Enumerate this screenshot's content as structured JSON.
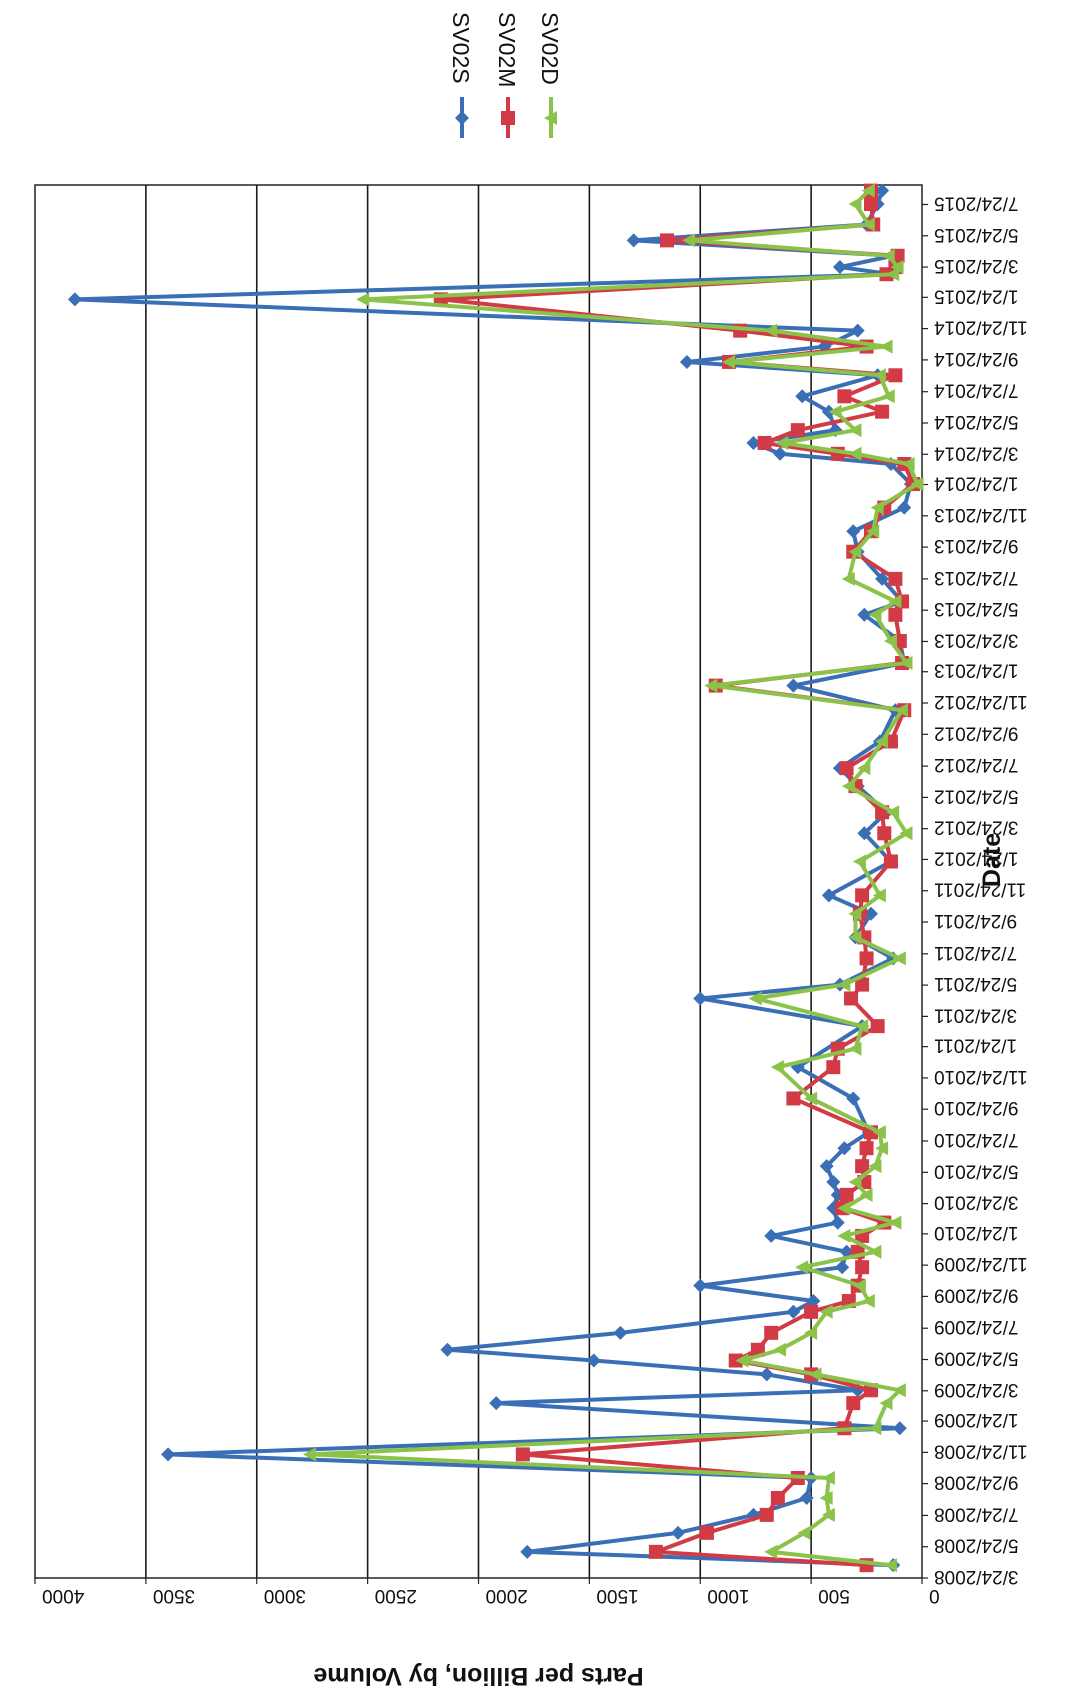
{
  "chart_data": {
    "type": "line",
    "xlabel": "Date",
    "ylabel": "Parts per Billion, by Volume",
    "ylim": [
      0,
      4000
    ],
    "yticks": [
      0,
      500,
      1000,
      1500,
      2000,
      2500,
      3000,
      3500,
      4000
    ],
    "xlim": [
      "3/24/2008",
      "8/31/2015"
    ],
    "xticks": [
      "3/24/2008",
      "5/24/2008",
      "7/24/2008",
      "9/24/2008",
      "11/24/2008",
      "1/24/2009",
      "3/24/2009",
      "5/24/2009",
      "7/24/2009",
      "9/24/2009",
      "11/24/2009",
      "1/24/2010",
      "3/24/2010",
      "5/24/2010",
      "7/24/2010",
      "9/24/2010",
      "11/24/2010",
      "1/24/2011",
      "3/24/2011",
      "5/24/2011",
      "7/24/2011",
      "9/24/2011",
      "11/24/2011",
      "1/24/2012",
      "3/24/2012",
      "5/24/2012",
      "7/24/2012",
      "9/24/2012",
      "11/24/2012",
      "1/24/2013",
      "3/24/2013",
      "5/24/2013",
      "7/24/2013",
      "9/24/2013",
      "11/24/2013",
      "1/24/2014",
      "3/24/2014",
      "5/24/2014",
      "7/24/2014",
      "9/24/2014",
      "11/24/2014",
      "1/24/2015",
      "3/24/2015",
      "5/24/2015",
      "7/24/2015"
    ],
    "grid": true,
    "legend_position": "top-right",
    "series": [
      {
        "name": "SV02S",
        "color": "#3a6fb5",
        "marker": "diamond",
        "points": [
          [
            "4/18/2008",
            130
          ],
          [
            "5/14/2008",
            1780
          ],
          [
            "6/20/2008",
            1100
          ],
          [
            "7/25/2008",
            760
          ],
          [
            "8/27/2008",
            520
          ],
          [
            "10/5/2008",
            500
          ],
          [
            "11/20/2008",
            3400
          ],
          [
            "1/10/2009",
            100
          ],
          [
            "2/28/2009",
            1920
          ],
          [
            "3/25/2009",
            290
          ],
          [
            "4/25/2009",
            700
          ],
          [
            "5/22/2009",
            1480
          ],
          [
            "6/12/2009",
            2140
          ],
          [
            "7/15/2009",
            1360
          ],
          [
            "8/25/2009",
            580
          ],
          [
            "9/15/2009",
            490
          ],
          [
            "10/15/2009",
            1000
          ],
          [
            "11/20/2009",
            360
          ],
          [
            "12/20/2009",
            340
          ],
          [
            "1/20/2010",
            680
          ],
          [
            "2/15/2010",
            380
          ],
          [
            "3/15/2010",
            400
          ],
          [
            "4/10/2010",
            380
          ],
          [
            "5/5/2010",
            400
          ],
          [
            "6/5/2010",
            430
          ],
          [
            "7/10/2010",
            350
          ],
          [
            "8/10/2010",
            240
          ],
          [
            "10/15/2010",
            310
          ],
          [
            "12/15/2010",
            560
          ],
          [
            "3/5/2011",
            270
          ],
          [
            "4/28/2011",
            1000
          ],
          [
            "5/25/2011",
            370
          ],
          [
            "7/15/2011",
            130
          ],
          [
            "8/25/2011",
            300
          ],
          [
            "10/10/2011",
            230
          ],
          [
            "11/15/2011",
            420
          ],
          [
            "1/20/2012",
            140
          ],
          [
            "3/15/2012",
            260
          ],
          [
            "4/25/2012",
            160
          ],
          [
            "6/15/2012",
            290
          ],
          [
            "7/20/2012",
            370
          ],
          [
            "9/10/2012",
            190
          ],
          [
            "11/10/2012",
            120
          ],
          [
            "12/28/2012",
            580
          ],
          [
            "2/10/2013",
            80
          ],
          [
            "3/25/2013",
            100
          ],
          [
            "5/15/2013",
            260
          ],
          [
            "6/10/2013",
            90
          ],
          [
            "7/24/2013",
            180
          ],
          [
            "9/15/2013",
            290
          ],
          [
            "10/25/2013",
            310
          ],
          [
            "12/10/2013",
            80
          ],
          [
            "1/25/2014",
            50
          ],
          [
            "3/5/2014",
            140
          ],
          [
            "3/25/2014",
            640
          ],
          [
            "4/15/2014",
            760
          ],
          [
            "5/10/2014",
            390
          ],
          [
            "6/15/2014",
            420
          ],
          [
            "7/15/2014",
            540
          ],
          [
            "8/25/2014",
            200
          ],
          [
            "9/20/2014",
            1060
          ],
          [
            "10/20/2014",
            440
          ],
          [
            "11/20/2014",
            290
          ],
          [
            "1/20/2015",
            3820
          ],
          [
            "3/10/2015",
            140
          ],
          [
            "3/24/2015",
            370
          ],
          [
            "4/15/2015",
            130
          ],
          [
            "5/15/2015",
            1300
          ],
          [
            "6/15/2015",
            250
          ],
          [
            "7/25/2015",
            200
          ],
          [
            "8/20/2015",
            180
          ]
        ]
      },
      {
        "name": "SV02M",
        "color": "#d23a45",
        "marker": "square",
        "points": [
          [
            "4/18/2008",
            250
          ],
          [
            "5/14/2008",
            1200
          ],
          [
            "6/20/2008",
            970
          ],
          [
            "7/25/2008",
            700
          ],
          [
            "8/27/2008",
            650
          ],
          [
            "10/5/2008",
            560
          ],
          [
            "11/20/2008",
            1800
          ],
          [
            "1/10/2009",
            350
          ],
          [
            "2/28/2009",
            310
          ],
          [
            "3/25/2009",
            230
          ],
          [
            "4/25/2009",
            500
          ],
          [
            "5/22/2009",
            840
          ],
          [
            "6/12/2009",
            740
          ],
          [
            "7/15/2009",
            680
          ],
          [
            "8/25/2009",
            500
          ],
          [
            "9/15/2009",
            330
          ],
          [
            "10/15/2009",
            290
          ],
          [
            "11/20/2009",
            270
          ],
          [
            "12/20/2009",
            290
          ],
          [
            "1/20/2010",
            270
          ],
          [
            "2/15/2010",
            170
          ],
          [
            "3/15/2010",
            360
          ],
          [
            "4/10/2010",
            340
          ],
          [
            "5/5/2010",
            260
          ],
          [
            "6/5/2010",
            270
          ],
          [
            "7/10/2010",
            250
          ],
          [
            "8/10/2010",
            230
          ],
          [
            "10/15/2010",
            580
          ],
          [
            "12/15/2010",
            400
          ],
          [
            "1/20/2011",
            380
          ],
          [
            "3/5/2011",
            200
          ],
          [
            "4/28/2011",
            320
          ],
          [
            "5/25/2011",
            270
          ],
          [
            "7/15/2011",
            250
          ],
          [
            "8/25/2011",
            260
          ],
          [
            "10/10/2011",
            280
          ],
          [
            "11/15/2011",
            270
          ],
          [
            "1/20/2012",
            140
          ],
          [
            "3/15/2012",
            170
          ],
          [
            "4/25/2012",
            180
          ],
          [
            "6/15/2012",
            300
          ],
          [
            "7/20/2012",
            340
          ],
          [
            "9/10/2012",
            140
          ],
          [
            "11/10/2012",
            80
          ],
          [
            "12/28/2012",
            930
          ],
          [
            "2/10/2013",
            90
          ],
          [
            "3/25/2013",
            100
          ],
          [
            "5/15/2013",
            120
          ],
          [
            "6/10/2013",
            90
          ],
          [
            "7/24/2013",
            120
          ],
          [
            "9/15/2013",
            310
          ],
          [
            "10/25/2013",
            230
          ],
          [
            "12/10/2013",
            170
          ],
          [
            "1/25/2014",
            40
          ],
          [
            "3/5/2014",
            80
          ],
          [
            "3/25/2014",
            380
          ],
          [
            "4/15/2014",
            710
          ],
          [
            "5/10/2014",
            560
          ],
          [
            "6/15/2014",
            180
          ],
          [
            "7/15/2014",
            350
          ],
          [
            "8/25/2014",
            120
          ],
          [
            "9/20/2014",
            870
          ],
          [
            "10/20/2014",
            250
          ],
          [
            "11/20/2014",
            820
          ],
          [
            "1/20/2015",
            2170
          ],
          [
            "3/10/2015",
            160
          ],
          [
            "3/24/2015",
            120
          ],
          [
            "4/15/2015",
            110
          ],
          [
            "5/15/2015",
            1150
          ],
          [
            "6/15/2015",
            220
          ],
          [
            "7/25/2015",
            230
          ],
          [
            "8/20/2015",
            230
          ]
        ]
      },
      {
        "name": "SV02D",
        "color": "#8bc34a",
        "marker": "triangle",
        "points": [
          [
            "4/18/2008",
            140
          ],
          [
            "5/14/2008",
            680
          ],
          [
            "6/20/2008",
            530
          ],
          [
            "7/25/2008",
            420
          ],
          [
            "8/27/2008",
            430
          ],
          [
            "10/5/2008",
            420
          ],
          [
            "11/20/2008",
            2760
          ],
          [
            "1/10/2009",
            210
          ],
          [
            "2/28/2009",
            160
          ],
          [
            "3/25/2009",
            100
          ],
          [
            "4/25/2009",
            480
          ],
          [
            "5/22/2009",
            810
          ],
          [
            "6/12/2009",
            640
          ],
          [
            "7/15/2009",
            500
          ],
          [
            "8/25/2009",
            430
          ],
          [
            "9/15/2009",
            240
          ],
          [
            "10/15/2009",
            280
          ],
          [
            "11/20/2009",
            540
          ],
          [
            "12/20/2009",
            210
          ],
          [
            "1/20/2010",
            350
          ],
          [
            "2/15/2010",
            120
          ],
          [
            "3/15/2010",
            350
          ],
          [
            "4/10/2010",
            250
          ],
          [
            "5/5/2010",
            300
          ],
          [
            "6/5/2010",
            210
          ],
          [
            "7/10/2010",
            180
          ],
          [
            "8/10/2010",
            190
          ],
          [
            "10/15/2010",
            500
          ],
          [
            "12/15/2010",
            650
          ],
          [
            "1/20/2011",
            300
          ],
          [
            "3/5/2011",
            270
          ],
          [
            "4/28/2011",
            750
          ],
          [
            "5/25/2011",
            350
          ],
          [
            "7/15/2011",
            100
          ],
          [
            "8/25/2011",
            300
          ],
          [
            "10/10/2011",
            300
          ],
          [
            "11/15/2011",
            190
          ],
          [
            "1/20/2012",
            280
          ],
          [
            "3/15/2012",
            70
          ],
          [
            "4/25/2012",
            130
          ],
          [
            "6/15/2012",
            330
          ],
          [
            "7/20/2012",
            260
          ],
          [
            "9/10/2012",
            180
          ],
          [
            "11/10/2012",
            90
          ],
          [
            "12/28/2012",
            950
          ],
          [
            "2/10/2013",
            70
          ],
          [
            "3/25/2013",
            140
          ],
          [
            "5/15/2013",
            210
          ],
          [
            "6/10/2013",
            120
          ],
          [
            "7/24/2013",
            330
          ],
          [
            "9/15/2013",
            300
          ],
          [
            "10/25/2013",
            220
          ],
          [
            "12/10/2013",
            200
          ],
          [
            "1/25/2014",
            20
          ],
          [
            "3/5/2014",
            60
          ],
          [
            "3/25/2014",
            300
          ],
          [
            "4/15/2014",
            630
          ],
          [
            "5/10/2014",
            300
          ],
          [
            "6/15/2014",
            390
          ],
          [
            "7/15/2014",
            150
          ],
          [
            "8/25/2014",
            190
          ],
          [
            "9/20/2014",
            870
          ],
          [
            "10/20/2014",
            160
          ],
          [
            "11/20/2014",
            680
          ],
          [
            "1/20/2015",
            2520
          ],
          [
            "3/10/2015",
            130
          ],
          [
            "3/24/2015",
            110
          ],
          [
            "4/15/2015",
            150
          ],
          [
            "5/15/2015",
            1050
          ],
          [
            "6/15/2015",
            240
          ],
          [
            "7/25/2015",
            300
          ],
          [
            "8/20/2015",
            240
          ]
        ]
      }
    ]
  }
}
